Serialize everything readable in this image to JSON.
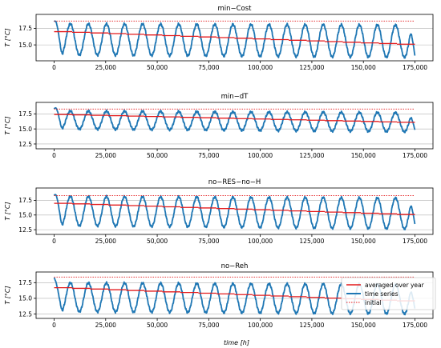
{
  "figure": {
    "xlabel": "time [h]",
    "legend": {
      "placement": "bottom-right of last panel",
      "entries": [
        {
          "label": "averaged over year",
          "color": "#e41a1c",
          "style": "solid"
        },
        {
          "label": "time series",
          "color": "#1f77b4",
          "style": "solid"
        },
        {
          "label": "initial",
          "color": "#e41a1c",
          "style": "dotted"
        }
      ]
    },
    "colors": {
      "series": "#1f77b4",
      "averaged": "#e41a1c",
      "initial": "#e41a1c",
      "grid": "#b0b0b0"
    }
  },
  "chart_data": [
    {
      "type": "line",
      "title": "min−Cost",
      "xlabel": "",
      "ylabel": "T [°C]",
      "xlim": [
        -8750,
        183750
      ],
      "ylim": [
        12.6,
        19.6
      ],
      "xticks": [
        0,
        25000,
        50000,
        75000,
        100000,
        125000,
        150000,
        175000
      ],
      "xtick_labels": [
        "0",
        "25,000",
        "50,000",
        "75,000",
        "100,000",
        "125,000",
        "150,000",
        "175,000"
      ],
      "yticks": [
        15.0,
        17.5
      ],
      "ytick_labels": [
        "15.0",
        "17.5"
      ],
      "grid": "horizontal",
      "series": [
        {
          "name": "time series",
          "kind": "oscillation",
          "period_h": 8760,
          "start": [
            0,
            18.5
          ],
          "first_peak": 19.3,
          "peaks": [
            18.2,
            18.0
          ],
          "troughs": [
            13.5,
            13.1
          ],
          "end": [
            175000,
            13.3
          ]
        },
        {
          "name": "averaged over year",
          "x": [
            0,
            175000
          ],
          "y": [
            17.0,
            15.1
          ]
        },
        {
          "name": "initial",
          "x": [
            0,
            175000
          ],
          "y": [
            18.6,
            18.6
          ]
        }
      ]
    },
    {
      "type": "line",
      "title": "min−dT",
      "xlabel": "",
      "ylabel": "T [°C]",
      "xlim": [
        -8750,
        183750
      ],
      "ylim": [
        11.7,
        19.4
      ],
      "xticks": [
        0,
        25000,
        50000,
        75000,
        100000,
        125000,
        150000,
        175000
      ],
      "xtick_labels": [
        "0",
        "25,000",
        "50,000",
        "75,000",
        "100,000",
        "125,000",
        "150,000",
        "175,000"
      ],
      "yticks": [
        12.5,
        15.0,
        17.5
      ],
      "ytick_labels": [
        "12.5",
        "15.0",
        "17.5"
      ],
      "grid": "horizontal",
      "series": [
        {
          "name": "time series",
          "kind": "oscillation",
          "period_h": 8760,
          "start": [
            0,
            18.3
          ],
          "first_peak": 19.2,
          "peaks": [
            18.0,
            17.7
          ],
          "troughs": [
            15.0,
            14.5
          ],
          "end": [
            175000,
            14.8
          ]
        },
        {
          "name": "averaged over year",
          "x": [
            0,
            175000
          ],
          "y": [
            17.4,
            16.1
          ]
        },
        {
          "name": "initial",
          "x": [
            0,
            175000
          ],
          "y": [
            18.3,
            18.3
          ]
        }
      ]
    },
    {
      "type": "line",
      "title": "no−RES−no−H",
      "xlabel": "",
      "ylabel": "T [°C]",
      "xlim": [
        -8750,
        183750
      ],
      "ylim": [
        11.7,
        19.6
      ],
      "xticks": [
        0,
        25000,
        50000,
        75000,
        100000,
        125000,
        150000,
        175000
      ],
      "xtick_labels": [
        "0",
        "25,000",
        "50,000",
        "75,000",
        "100,000",
        "125,000",
        "150,000",
        "175,000"
      ],
      "yticks": [
        12.5,
        15.0,
        17.5
      ],
      "ytick_labels": [
        "12.5",
        "15.0",
        "17.5"
      ],
      "grid": "horizontal",
      "series": [
        {
          "name": "time series",
          "kind": "oscillation",
          "period_h": 8760,
          "start": [
            0,
            18.3
          ],
          "first_peak": 19.3,
          "peaks": [
            18.2,
            17.9
          ],
          "troughs": [
            13.2,
            12.6
          ],
          "end": [
            175000,
            13.4
          ]
        },
        {
          "name": "averaged over year",
          "x": [
            0,
            175000
          ],
          "y": [
            17.0,
            15.1
          ]
        },
        {
          "name": "initial",
          "x": [
            0,
            175000
          ],
          "y": [
            18.3,
            18.3
          ]
        }
      ]
    },
    {
      "type": "line",
      "title": "no−Reh",
      "xlabel": "time [h]",
      "ylabel": "T [°C]",
      "xlim": [
        -8750,
        183750
      ],
      "ylim": [
        11.8,
        19.2
      ],
      "xticks": [
        0,
        25000,
        50000,
        75000,
        100000,
        125000,
        150000,
        175000
      ],
      "xtick_labels": [
        "0",
        "25,000",
        "50,000",
        "75,000",
        "100,000",
        "125,000",
        "150,000",
        "175,000"
      ],
      "yticks": [
        12.5,
        15.0,
        17.5
      ],
      "ytick_labels": [
        "12.5",
        "15.0",
        "17.5"
      ],
      "grid": "horizontal",
      "series": [
        {
          "name": "time series",
          "kind": "oscillation",
          "period_h": 8760,
          "start": [
            0,
            18.3
          ],
          "first_peak": 17.9,
          "peaks": [
            17.5,
            17.2
          ],
          "troughs": [
            12.9,
            12.5
          ],
          "end": [
            175000,
            13.3
          ]
        },
        {
          "name": "averaged over year",
          "x": [
            0,
            175000
          ],
          "y": [
            16.7,
            14.6
          ]
        },
        {
          "name": "initial",
          "x": [
            0,
            175000
          ],
          "y": [
            18.4,
            18.4
          ]
        }
      ]
    }
  ]
}
